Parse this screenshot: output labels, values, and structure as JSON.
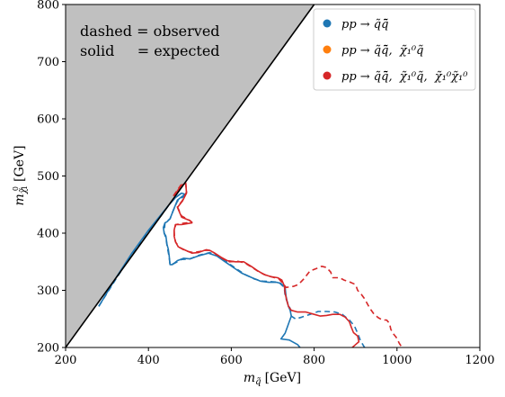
{
  "chart_data": {
    "type": "line",
    "xlabel": "m_q̃ [GeV]",
    "xlabel_parts": {
      "m": "m",
      "sub": "q̃",
      "unit": "[GeV]"
    },
    "ylabel": "m_χ̃₁⁰ [GeV]",
    "ylabel_parts": {
      "m": "m",
      "sub": "χ̃",
      "sup": "0",
      "subsub": "1",
      "unit": "[GeV]"
    },
    "xlim": [
      200,
      1200
    ],
    "ylim": [
      200,
      800
    ],
    "xticks": [
      200,
      400,
      600,
      800,
      1000,
      1200
    ],
    "yticks": [
      200,
      300,
      400,
      500,
      600,
      700,
      800
    ],
    "grid": false,
    "legend_position": "top-right",
    "annotations": [
      "dashed = observed",
      "solid     = expected"
    ],
    "excluded_region": {
      "color": "#c0c0c0",
      "boundary": [
        [
          200,
          200
        ],
        [
          800,
          800
        ]
      ]
    },
    "series": [
      {
        "name": "pp → q̃q̃̄",
        "color": "#1f77b4",
        "expected": [
          [
            280,
            272
          ],
          [
            320,
            320
          ],
          [
            360,
            365
          ],
          [
            400,
            405
          ],
          [
            430,
            432
          ],
          [
            450,
            450
          ],
          [
            465,
            462
          ],
          [
            480,
            470
          ],
          [
            488,
            468
          ],
          [
            470,
            458
          ],
          [
            460,
            440
          ],
          [
            452,
            425
          ],
          [
            445,
            420
          ],
          [
            440,
            418
          ],
          [
            436,
            410
          ],
          [
            438,
            400
          ],
          [
            442,
            395
          ],
          [
            445,
            380
          ],
          [
            448,
            372
          ],
          [
            450,
            360
          ],
          [
            452,
            345
          ],
          [
            458,
            345
          ],
          [
            470,
            352
          ],
          [
            485,
            356
          ],
          [
            500,
            355
          ],
          [
            520,
            360
          ],
          [
            545,
            365
          ],
          [
            565,
            360
          ],
          [
            585,
            350
          ],
          [
            605,
            340
          ],
          [
            625,
            330
          ],
          [
            650,
            322
          ],
          [
            670,
            316
          ],
          [
            690,
            314
          ],
          [
            710,
            314
          ],
          [
            720,
            312
          ],
          [
            730,
            305
          ],
          [
            732,
            290
          ],
          [
            735,
            280
          ],
          [
            738,
            272
          ],
          [
            742,
            265
          ],
          [
            745,
            255
          ],
          [
            740,
            245
          ],
          [
            735,
            235
          ],
          [
            730,
            225
          ],
          [
            720,
            215
          ],
          [
            740,
            213
          ],
          [
            760,
            205
          ],
          [
            766,
            200
          ]
        ],
        "observed": [
          [
            280,
            272
          ],
          [
            320,
            318
          ],
          [
            360,
            363
          ],
          [
            400,
            403
          ],
          [
            430,
            430
          ],
          [
            452,
            452
          ],
          [
            468,
            464
          ],
          [
            480,
            470
          ],
          [
            488,
            466
          ],
          [
            470,
            456
          ],
          [
            460,
            440
          ],
          [
            452,
            425
          ],
          [
            440,
            418
          ],
          [
            438,
            400
          ],
          [
            442,
            392
          ],
          [
            445,
            378
          ],
          [
            450,
            358
          ],
          [
            452,
            345
          ],
          [
            462,
            347
          ],
          [
            480,
            354
          ],
          [
            500,
            355
          ],
          [
            525,
            362
          ],
          [
            548,
            366
          ],
          [
            568,
            360
          ],
          [
            590,
            349
          ],
          [
            612,
            338
          ],
          [
            632,
            328
          ],
          [
            655,
            320
          ],
          [
            675,
            316
          ],
          [
            700,
            315
          ],
          [
            715,
            314
          ],
          [
            728,
            305
          ],
          [
            730,
            290
          ],
          [
            735,
            280
          ],
          [
            742,
            268
          ],
          [
            745,
            255
          ],
          [
            755,
            250
          ],
          [
            770,
            253
          ],
          [
            790,
            258
          ],
          [
            810,
            263
          ],
          [
            830,
            263
          ],
          [
            850,
            262
          ],
          [
            868,
            258
          ],
          [
            885,
            248
          ],
          [
            897,
            238
          ],
          [
            905,
            225
          ],
          [
            912,
            212
          ],
          [
            920,
            202
          ],
          [
            922,
            200
          ]
        ]
      },
      {
        "name": "pp → q̃q̃̄, χ̃₁⁰q̃",
        "color": "#ff7f0e",
        "expected": [],
        "observed": []
      },
      {
        "name": "pp → q̃q̃̄, χ̃₁⁰q̃, χ̃₁⁰χ̃₁⁰",
        "color": "#d62728",
        "expected": [
          [
            462,
            466
          ],
          [
            480,
            484
          ],
          [
            490,
            487
          ],
          [
            492,
            470
          ],
          [
            482,
            456
          ],
          [
            470,
            445
          ],
          [
            480,
            428
          ],
          [
            500,
            422
          ],
          [
            505,
            418
          ],
          [
            480,
            415
          ],
          [
            465,
            415
          ],
          [
            462,
            405
          ],
          [
            462,
            395
          ],
          [
            465,
            385
          ],
          [
            472,
            376
          ],
          [
            490,
            370
          ],
          [
            505,
            365
          ],
          [
            520,
            366
          ],
          [
            535,
            370
          ],
          [
            548,
            370
          ],
          [
            560,
            365
          ],
          [
            575,
            358
          ],
          [
            590,
            352
          ],
          [
            610,
            350
          ],
          [
            630,
            350
          ],
          [
            648,
            342
          ],
          [
            662,
            335
          ],
          [
            678,
            328
          ],
          [
            695,
            324
          ],
          [
            712,
            322
          ],
          [
            722,
            318
          ],
          [
            728,
            308
          ],
          [
            730,
            295
          ],
          [
            734,
            282
          ],
          [
            738,
            272
          ],
          [
            745,
            265
          ],
          [
            760,
            262
          ],
          [
            780,
            262
          ],
          [
            800,
            258
          ],
          [
            815,
            255
          ],
          [
            830,
            256
          ],
          [
            845,
            258
          ],
          [
            862,
            258
          ],
          [
            875,
            253
          ],
          [
            885,
            245
          ],
          [
            890,
            235
          ],
          [
            895,
            226
          ],
          [
            905,
            220
          ],
          [
            908,
            210
          ],
          [
            900,
            205
          ],
          [
            892,
            200
          ]
        ],
        "observed": [
          [
            460,
            465
          ],
          [
            478,
            484
          ],
          [
            490,
            488
          ],
          [
            492,
            472
          ],
          [
            482,
            457
          ],
          [
            470,
            446
          ],
          [
            480,
            430
          ],
          [
            500,
            422
          ],
          [
            505,
            419
          ],
          [
            480,
            417
          ],
          [
            466,
            415
          ],
          [
            462,
            404
          ],
          [
            463,
            393
          ],
          [
            466,
            384
          ],
          [
            475,
            375
          ],
          [
            490,
            369
          ],
          [
            508,
            366
          ],
          [
            525,
            368
          ],
          [
            540,
            371
          ],
          [
            552,
            369
          ],
          [
            565,
            362
          ],
          [
            580,
            355
          ],
          [
            596,
            350
          ],
          [
            615,
            351
          ],
          [
            632,
            348
          ],
          [
            650,
            340
          ],
          [
            665,
            333
          ],
          [
            682,
            327
          ],
          [
            700,
            323
          ],
          [
            715,
            320
          ],
          [
            725,
            312
          ],
          [
            732,
            305
          ],
          [
            750,
            307
          ],
          [
            762,
            310
          ],
          [
            775,
            320
          ],
          [
            790,
            334
          ],
          [
            805,
            338
          ],
          [
            818,
            342
          ],
          [
            830,
            340
          ],
          [
            840,
            332
          ],
          [
            845,
            322
          ],
          [
            852,
            322
          ],
          [
            862,
            322
          ],
          [
            872,
            318
          ],
          [
            885,
            315
          ],
          [
            900,
            310
          ],
          [
            905,
            300
          ],
          [
            915,
            292
          ],
          [
            922,
            285
          ],
          [
            928,
            277
          ],
          [
            935,
            268
          ],
          [
            945,
            258
          ],
          [
            955,
            252
          ],
          [
            965,
            248
          ],
          [
            975,
            248
          ],
          [
            982,
            242
          ],
          [
            985,
            232
          ],
          [
            990,
            225
          ],
          [
            998,
            218
          ],
          [
            1005,
            208
          ],
          [
            1012,
            200
          ]
        ]
      }
    ]
  },
  "legend": {
    "items": [
      {
        "label": "pp → q̃q̃̄",
        "color": "#1f77b4"
      },
      {
        "label": "pp → q̃q̃̄,  χ̃₁⁰q̃",
        "color": "#ff7f0e"
      },
      {
        "label": "pp → q̃q̃̄,  χ̃₁⁰q̃,  χ̃₁⁰χ̃₁⁰",
        "color": "#d62728"
      }
    ]
  }
}
